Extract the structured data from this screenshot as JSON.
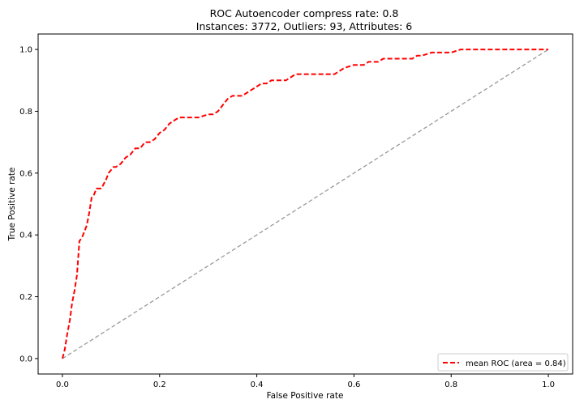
{
  "chart_data": {
    "type": "line",
    "title": "ROC Autoencoder compress rate: 0.8",
    "subtitle": "Instances: 3772, Outliers: 93, Attributes: 6",
    "xlabel": "False Positive rate",
    "ylabel": "True Positive rate",
    "xlim": [
      -0.05,
      1.05
    ],
    "ylim": [
      -0.05,
      1.05
    ],
    "xticks": [
      0.0,
      0.2,
      0.4,
      0.6,
      0.8,
      1.0
    ],
    "yticks": [
      0.0,
      0.2,
      0.4,
      0.6,
      0.8,
      1.0
    ],
    "xtick_labels": [
      "0.0",
      "0.2",
      "0.4",
      "0.6",
      "0.8",
      "1.0"
    ],
    "ytick_labels": [
      "0.0",
      "0.2",
      "0.4",
      "0.6",
      "0.8",
      "1.0"
    ],
    "grid": false,
    "legend_position": "lower-right",
    "series": [
      {
        "name": "mean ROC (area = 0.84)",
        "color": "#ff0000",
        "style": "dashed",
        "x": [
          0.0,
          0.005,
          0.01,
          0.015,
          0.02,
          0.025,
          0.03,
          0.035,
          0.04,
          0.045,
          0.05,
          0.055,
          0.06,
          0.065,
          0.07,
          0.08,
          0.09,
          0.095,
          0.1,
          0.105,
          0.11,
          0.12,
          0.13,
          0.14,
          0.15,
          0.16,
          0.17,
          0.18,
          0.19,
          0.2,
          0.21,
          0.22,
          0.23,
          0.24,
          0.26,
          0.28,
          0.3,
          0.31,
          0.32,
          0.33,
          0.34,
          0.35,
          0.36,
          0.37,
          0.38,
          0.39,
          0.4,
          0.41,
          0.42,
          0.43,
          0.44,
          0.45,
          0.46,
          0.47,
          0.48,
          0.5,
          0.52,
          0.54,
          0.56,
          0.57,
          0.58,
          0.6,
          0.62,
          0.63,
          0.64,
          0.65,
          0.66,
          0.68,
          0.7,
          0.72,
          0.73,
          0.74,
          0.76,
          0.78,
          0.8,
          0.82,
          0.84,
          0.9,
          0.95,
          1.0
        ],
        "y": [
          0.0,
          0.03,
          0.08,
          0.12,
          0.18,
          0.22,
          0.27,
          0.38,
          0.39,
          0.41,
          0.43,
          0.47,
          0.52,
          0.53,
          0.55,
          0.55,
          0.58,
          0.6,
          0.61,
          0.62,
          0.62,
          0.63,
          0.65,
          0.66,
          0.68,
          0.68,
          0.7,
          0.7,
          0.71,
          0.73,
          0.74,
          0.76,
          0.77,
          0.78,
          0.78,
          0.78,
          0.79,
          0.79,
          0.8,
          0.82,
          0.84,
          0.85,
          0.85,
          0.85,
          0.86,
          0.87,
          0.88,
          0.89,
          0.89,
          0.9,
          0.9,
          0.9,
          0.9,
          0.91,
          0.92,
          0.92,
          0.92,
          0.92,
          0.92,
          0.93,
          0.94,
          0.95,
          0.95,
          0.96,
          0.96,
          0.96,
          0.97,
          0.97,
          0.97,
          0.97,
          0.98,
          0.98,
          0.99,
          0.99,
          0.99,
          1.0,
          1.0,
          1.0,
          1.0,
          1.0
        ]
      },
      {
        "name": "",
        "color": "#999999",
        "style": "dashed",
        "x": [
          0.0,
          1.0
        ],
        "y": [
          0.0,
          1.0
        ]
      }
    ]
  }
}
